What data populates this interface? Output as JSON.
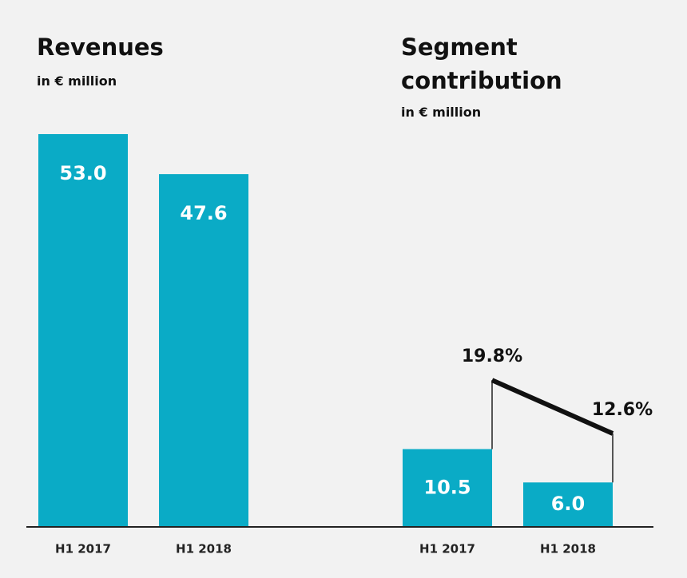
{
  "chart_data": [
    {
      "type": "bar",
      "title": "Revenues",
      "subtitle": "in € million",
      "categories": [
        "H1 2017",
        "H1 2018"
      ],
      "values": [
        53.0,
        47.6
      ],
      "value_labels": [
        "53.0",
        "47.6"
      ],
      "color": "#0aabc6",
      "ylim": [
        0,
        60
      ]
    },
    {
      "type": "bar",
      "title": "Segment contribution",
      "subtitle": "in € million",
      "categories": [
        "H1 2017",
        "H1 2018"
      ],
      "values": [
        10.5,
        6.0
      ],
      "value_labels": [
        "10.5",
        "6.0"
      ],
      "color": "#0aabc6",
      "ylim": [
        0,
        60
      ],
      "line": {
        "values": [
          19.8,
          12.6
        ],
        "value_labels": [
          "19.8%",
          "12.6%"
        ],
        "axis": "y2",
        "color": "#111111"
      },
      "y2lim": [
        0,
        60
      ]
    }
  ]
}
